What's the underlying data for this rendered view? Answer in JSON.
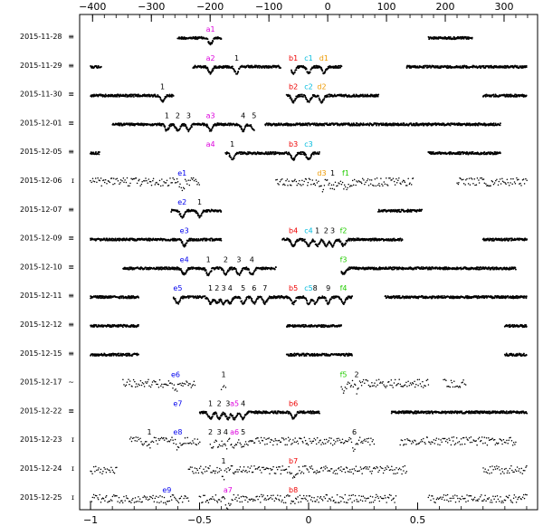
{
  "chart_data": {
    "type": "scatter",
    "x_bottom": {
      "range": [
        -1.05,
        1.05
      ],
      "ticks": [
        -1,
        -0.5,
        0,
        0.5
      ],
      "tick_labels": [
        "−1",
        "−0.5",
        "0",
        "0.5"
      ]
    },
    "x_top": {
      "range": [
        -422,
        357
      ],
      "ticks": [
        -400,
        -300,
        -200,
        -100,
        0,
        100,
        200,
        300
      ],
      "tick_labels": [
        "−400",
        "−300",
        "−200",
        "−100",
        "0",
        "100",
        "200",
        "300"
      ]
    },
    "rows": [
      {
        "date": "2015-11-28",
        "symbol": "≡",
        "segments": [
          [
            -0.6,
            -0.4
          ],
          [
            0.55,
            0.75
          ]
        ]
      },
      {
        "date": "2015-11-29",
        "symbol": "≡",
        "segments": [
          [
            -1.0,
            -0.95
          ],
          [
            -0.53,
            -0.13
          ],
          [
            -0.08,
            0.15
          ],
          [
            0.45,
            1.0
          ]
        ]
      },
      {
        "date": "2015-11-30",
        "symbol": "≡",
        "segments": [
          [
            -1.0,
            -0.62
          ],
          [
            -0.1,
            0.32
          ],
          [
            0.8,
            1.0
          ]
        ]
      },
      {
        "date": "2015-12-01",
        "symbol": "≡",
        "segments": [
          [
            -0.9,
            -0.25
          ],
          [
            -0.2,
            0.88
          ]
        ]
      },
      {
        "date": "2015-12-05",
        "symbol": "≡",
        "segments": [
          [
            -1.0,
            -0.96
          ],
          [
            -0.38,
            0.05
          ],
          [
            0.55,
            0.88
          ]
        ]
      },
      {
        "date": "2015-12-06",
        "symbol": "ɪ",
        "segments": [
          [
            -1.0,
            -0.5
          ],
          [
            -0.15,
            0.48
          ],
          [
            0.68,
            1.0
          ]
        ]
      },
      {
        "date": "2015-12-07",
        "symbol": "≡",
        "segments": [
          [
            -0.63,
            -0.4
          ],
          [
            0.32,
            0.52
          ]
        ]
      },
      {
        "date": "2015-12-09",
        "symbol": "≡",
        "segments": [
          [
            -1.0,
            -0.4
          ],
          [
            -0.12,
            0.43
          ],
          [
            0.8,
            1.0
          ]
        ]
      },
      {
        "date": "2015-12-10",
        "symbol": "≡",
        "segments": [
          [
            -0.85,
            -0.15
          ],
          [
            0.15,
            0.95
          ]
        ]
      },
      {
        "date": "2015-12-11",
        "symbol": "≡",
        "segments": [
          [
            -1.0,
            -0.78
          ],
          [
            -0.62,
            0.2
          ],
          [
            0.35,
            1.0
          ]
        ]
      },
      {
        "date": "2015-12-12",
        "symbol": "≡",
        "segments": [
          [
            -1.0,
            -0.78
          ],
          [
            -0.1,
            0.15
          ],
          [
            0.9,
            1.0
          ]
        ]
      },
      {
        "date": "2015-12-15",
        "symbol": "≡",
        "segments": [
          [
            -1.0,
            -0.78
          ],
          [
            -0.1,
            0.2
          ],
          [
            0.9,
            1.0
          ]
        ]
      },
      {
        "date": "2015-12-17",
        "symbol": "~",
        "segments": [
          [
            -0.85,
            -0.52
          ],
          [
            -0.4,
            -0.38
          ],
          [
            0.15,
            0.55
          ],
          [
            0.62,
            0.72
          ]
        ]
      },
      {
        "date": "2015-12-22",
        "symbol": "≡",
        "segments": [
          [
            -0.5,
            0.05
          ],
          [
            0.38,
            1.0
          ]
        ]
      },
      {
        "date": "2015-12-23",
        "symbol": "ɪ",
        "segments": [
          [
            -0.82,
            -0.5
          ],
          [
            -0.45,
            0.3
          ],
          [
            0.42,
            0.95
          ]
        ]
      },
      {
        "date": "2015-12-24",
        "symbol": "ɪ",
        "segments": [
          [
            -1.0,
            -0.88
          ],
          [
            -0.55,
            0.45
          ],
          [
            0.8,
            1.0
          ]
        ]
      },
      {
        "date": "2015-12-25",
        "symbol": "ɪ",
        "segments": [
          [
            -1.0,
            -0.55
          ],
          [
            -0.5,
            0.4
          ],
          [
            0.55,
            1.0
          ]
        ]
      }
    ],
    "annotations": [
      {
        "text": "a1",
        "x": -0.45,
        "row": 0,
        "color": "#dd00dd"
      },
      {
        "text": "a2",
        "x": -0.45,
        "row": 1,
        "color": "#dd00dd"
      },
      {
        "text": "1",
        "x": -0.33,
        "row": 1,
        "color": "#000000"
      },
      {
        "text": "b1",
        "x": -0.07,
        "row": 1,
        "color": "#ee0000"
      },
      {
        "text": "c1",
        "x": 0.0,
        "row": 1,
        "color": "#00bbdd"
      },
      {
        "text": "d1",
        "x": 0.07,
        "row": 1,
        "color": "#ee9900"
      },
      {
        "text": "1",
        "x": -0.67,
        "row": 2,
        "color": "#000000"
      },
      {
        "text": "b2",
        "x": -0.07,
        "row": 2,
        "color": "#ee0000"
      },
      {
        "text": "c2",
        "x": 0.0,
        "row": 2,
        "color": "#00bbdd"
      },
      {
        "text": "d2",
        "x": 0.06,
        "row": 2,
        "color": "#ee9900"
      },
      {
        "text": "1",
        "x": -0.65,
        "row": 3,
        "color": "#000000"
      },
      {
        "text": "2",
        "x": -0.6,
        "row": 3,
        "color": "#000000"
      },
      {
        "text": "3",
        "x": -0.55,
        "row": 3,
        "color": "#000000"
      },
      {
        "text": "a3",
        "x": -0.45,
        "row": 3,
        "color": "#dd00dd"
      },
      {
        "text": "4",
        "x": -0.3,
        "row": 3,
        "color": "#000000"
      },
      {
        "text": "5",
        "x": -0.25,
        "row": 3,
        "color": "#000000"
      },
      {
        "text": "a4",
        "x": -0.45,
        "row": 4,
        "color": "#dd00dd"
      },
      {
        "text": "1",
        "x": -0.35,
        "row": 4,
        "color": "#000000"
      },
      {
        "text": "b3",
        "x": -0.07,
        "row": 4,
        "color": "#ee0000"
      },
      {
        "text": "c3",
        "x": 0.0,
        "row": 4,
        "color": "#00bbdd"
      },
      {
        "text": "e1",
        "x": -0.58,
        "row": 5,
        "color": "#0000ee"
      },
      {
        "text": "d3",
        "x": 0.06,
        "row": 5,
        "color": "#ee9900"
      },
      {
        "text": "1",
        "x": 0.11,
        "row": 5,
        "color": "#000000"
      },
      {
        "text": "f1",
        "x": 0.17,
        "row": 5,
        "color": "#22cc00"
      },
      {
        "text": "e2",
        "x": -0.58,
        "row": 6,
        "color": "#0000ee"
      },
      {
        "text": "1",
        "x": -0.5,
        "row": 6,
        "color": "#000000"
      },
      {
        "text": "e3",
        "x": -0.57,
        "row": 7,
        "color": "#0000ee"
      },
      {
        "text": "b4",
        "x": -0.07,
        "row": 7,
        "color": "#ee0000"
      },
      {
        "text": "c4",
        "x": 0.0,
        "row": 7,
        "color": "#00bbdd"
      },
      {
        "text": "1",
        "x": 0.04,
        "row": 7,
        "color": "#000000"
      },
      {
        "text": "2",
        "x": 0.08,
        "row": 7,
        "color": "#000000"
      },
      {
        "text": "3",
        "x": 0.11,
        "row": 7,
        "color": "#000000"
      },
      {
        "text": "f2",
        "x": 0.16,
        "row": 7,
        "color": "#22cc00"
      },
      {
        "text": "e4",
        "x": -0.57,
        "row": 8,
        "color": "#0000ee"
      },
      {
        "text": "1",
        "x": -0.46,
        "row": 8,
        "color": "#000000"
      },
      {
        "text": "2",
        "x": -0.38,
        "row": 8,
        "color": "#000000"
      },
      {
        "text": "3",
        "x": -0.32,
        "row": 8,
        "color": "#000000"
      },
      {
        "text": "4",
        "x": -0.26,
        "row": 8,
        "color": "#000000"
      },
      {
        "text": "f3",
        "x": 0.16,
        "row": 8,
        "color": "#22cc00"
      },
      {
        "text": "e5",
        "x": -0.6,
        "row": 9,
        "color": "#0000ee"
      },
      {
        "text": "1",
        "x": -0.45,
        "row": 9,
        "color": "#000000"
      },
      {
        "text": "2",
        "x": -0.42,
        "row": 9,
        "color": "#000000"
      },
      {
        "text": "3",
        "x": -0.39,
        "row": 9,
        "color": "#000000"
      },
      {
        "text": "4",
        "x": -0.36,
        "row": 9,
        "color": "#000000"
      },
      {
        "text": "5",
        "x": -0.3,
        "row": 9,
        "color": "#000000"
      },
      {
        "text": "6",
        "x": -0.25,
        "row": 9,
        "color": "#000000"
      },
      {
        "text": "7",
        "x": -0.2,
        "row": 9,
        "color": "#000000"
      },
      {
        "text": "b5",
        "x": -0.07,
        "row": 9,
        "color": "#ee0000"
      },
      {
        "text": "c5",
        "x": 0.0,
        "row": 9,
        "color": "#00bbdd"
      },
      {
        "text": "8",
        "x": 0.03,
        "row": 9,
        "color": "#000000"
      },
      {
        "text": "9",
        "x": 0.09,
        "row": 9,
        "color": "#000000"
      },
      {
        "text": "f4",
        "x": 0.16,
        "row": 9,
        "color": "#22cc00"
      },
      {
        "text": "e6",
        "x": -0.61,
        "row": 12,
        "color": "#0000ee"
      },
      {
        "text": "1",
        "x": -0.39,
        "row": 12,
        "color": "#000000"
      },
      {
        "text": "f5",
        "x": 0.16,
        "row": 12,
        "color": "#22cc00"
      },
      {
        "text": "2",
        "x": 0.22,
        "row": 12,
        "color": "#000000"
      },
      {
        "text": "e7",
        "x": -0.6,
        "row": 13,
        "color": "#0000ee"
      },
      {
        "text": "1",
        "x": -0.45,
        "row": 13,
        "color": "#000000"
      },
      {
        "text": "2",
        "x": -0.41,
        "row": 13,
        "color": "#000000"
      },
      {
        "text": "3",
        "x": -0.37,
        "row": 13,
        "color": "#000000"
      },
      {
        "text": "a5",
        "x": -0.34,
        "row": 13,
        "color": "#dd00dd"
      },
      {
        "text": "4",
        "x": -0.3,
        "row": 13,
        "color": "#000000"
      },
      {
        "text": "b6",
        "x": -0.07,
        "row": 13,
        "color": "#ee0000"
      },
      {
        "text": "1",
        "x": -0.73,
        "row": 14,
        "color": "#000000"
      },
      {
        "text": "e8",
        "x": -0.6,
        "row": 14,
        "color": "#0000ee"
      },
      {
        "text": "2",
        "x": -0.45,
        "row": 14,
        "color": "#000000"
      },
      {
        "text": "3",
        "x": -0.41,
        "row": 14,
        "color": "#000000"
      },
      {
        "text": "4",
        "x": -0.38,
        "row": 14,
        "color": "#000000"
      },
      {
        "text": "a6",
        "x": -0.34,
        "row": 14,
        "color": "#dd00dd"
      },
      {
        "text": "5",
        "x": -0.3,
        "row": 14,
        "color": "#000000"
      },
      {
        "text": "6",
        "x": 0.21,
        "row": 14,
        "color": "#000000"
      },
      {
        "text": "1",
        "x": -0.39,
        "row": 15,
        "color": "#000000"
      },
      {
        "text": "b7",
        "x": -0.07,
        "row": 15,
        "color": "#ee0000"
      },
      {
        "text": "e9",
        "x": -0.65,
        "row": 16,
        "color": "#0000ee"
      },
      {
        "text": "a7",
        "x": -0.37,
        "row": 16,
        "color": "#dd00dd"
      },
      {
        "text": "b8",
        "x": -0.07,
        "row": 16,
        "color": "#ee0000"
      }
    ]
  }
}
